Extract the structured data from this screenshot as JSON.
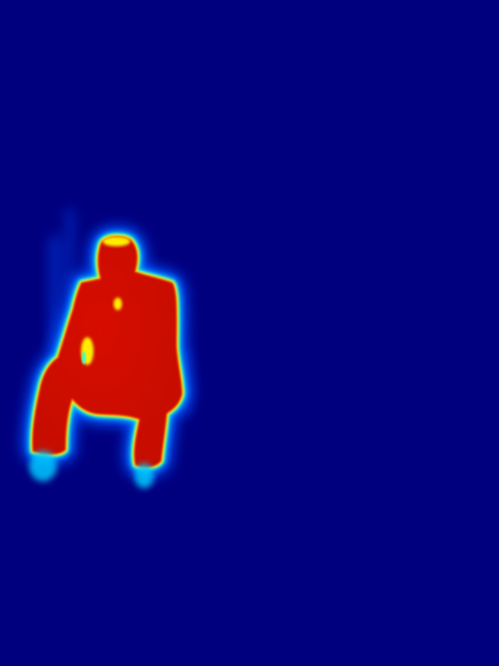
{
  "image": {
    "kind": "heatmap-silhouette",
    "subject": "crouching-person-silhouette",
    "colors": {
      "background": "#00007f",
      "halo_outer": "#0050ff",
      "halo_mid": "#00c8ff",
      "edge_cyan": "#40ffc0",
      "edge_yellow": "#ffee00",
      "edge_orange": "#ff7a00",
      "body_hot": "#d61000",
      "body_core": "#c40800",
      "hot_spot": "#ff5a00"
    }
  }
}
